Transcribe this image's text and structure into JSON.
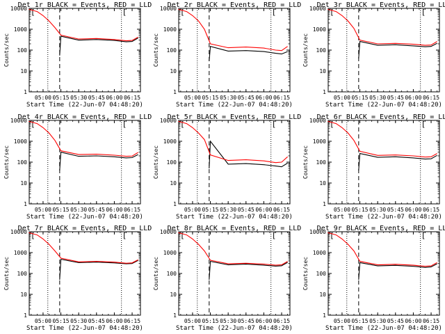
{
  "chart_data": [
    {
      "type": "line",
      "title": "Det 1r BLACK = Events, RED = LLD",
      "xlabel": "Start Time (22-Jun-07 04:48:20)",
      "ylabel": "Counts/sec",
      "x_tick_labels": [
        "05:00",
        "05:15",
        "05:30",
        "05:45",
        "06:00",
        "06:15"
      ],
      "y_tick_labels": [
        "1",
        "10",
        "100",
        "1000",
        "10000"
      ],
      "ylim": [
        1,
        10000
      ],
      "y_scale": "log",
      "x_range": [
        "04:48:20",
        "06:22:00"
      ],
      "series": [
        {
          "color": "#000000",
          "x": [
            "05:14",
            "05:15",
            "05:30",
            "05:45",
            "06:00",
            "06:10",
            "06:15",
            "06:20"
          ],
          "y": [
            55,
            460,
            300,
            320,
            290,
            250,
            260,
            380
          ]
        },
        {
          "color": "#ff0000",
          "x": [
            "04:48",
            "04:55",
            "05:00",
            "05:05",
            "05:10",
            "05:15",
            "05:30",
            "05:45",
            "06:00",
            "06:10",
            "06:15",
            "06:20"
          ],
          "y": [
            9000,
            7000,
            4500,
            2500,
            1200,
            520,
            340,
            360,
            320,
            280,
            290,
            420
          ]
        }
      ]
    },
    {
      "type": "line",
      "title": "Det 2r BLACK = Events, RED = LLD",
      "xlabel": "Start Time (22-Jun-07 04:48:20)",
      "ylabel": "Counts/sec",
      "x_tick_labels": [
        "05:00",
        "05:15",
        "05:30",
        "05:45",
        "06:00",
        "06:15"
      ],
      "y_tick_labels": [
        "1",
        "10",
        "100",
        "1000",
        "10000"
      ],
      "ylim": [
        1,
        10000
      ],
      "y_scale": "log",
      "x_range": [
        "04:48:20",
        "06:22:00"
      ],
      "series": [
        {
          "color": "#000000",
          "x": [
            "05:14",
            "05:15",
            "05:30",
            "05:45",
            "06:00",
            "06:10",
            "06:15",
            "06:20"
          ],
          "y": [
            30,
            150,
            90,
            95,
            85,
            70,
            65,
            85
          ]
        },
        {
          "color": "#ff0000",
          "x": [
            "04:48",
            "04:55",
            "05:00",
            "05:05",
            "05:10",
            "05:15",
            "05:30",
            "05:45",
            "06:00",
            "06:10",
            "06:15",
            "06:20"
          ],
          "y": [
            9000,
            7000,
            4500,
            2500,
            1000,
            200,
            130,
            140,
            125,
            100,
            95,
            150
          ]
        }
      ]
    },
    {
      "type": "line",
      "title": "Det 3r BLACK = Events, RED = LLD",
      "xlabel": "Start Time (22-Jun-07 04:48:20)",
      "ylabel": "Counts/sec",
      "x_tick_labels": [
        "05:00",
        "05:15",
        "05:30",
        "05:45",
        "06:00",
        "06:15"
      ],
      "y_tick_labels": [
        "1",
        "10",
        "100",
        "1000",
        "10000"
      ],
      "ylim": [
        1,
        10000
      ],
      "y_scale": "log",
      "x_range": [
        "04:48:20",
        "06:22:00"
      ],
      "series": [
        {
          "color": "#000000",
          "x": [
            "05:14",
            "05:15",
            "05:30",
            "05:45",
            "06:00",
            "06:10",
            "06:15",
            "06:20"
          ],
          "y": [
            40,
            260,
            170,
            180,
            160,
            145,
            150,
            210
          ]
        },
        {
          "color": "#ff0000",
          "x": [
            "04:48",
            "04:55",
            "05:00",
            "05:05",
            "05:10",
            "05:15",
            "05:30",
            "05:45",
            "06:00",
            "06:10",
            "06:15",
            "06:20"
          ],
          "y": [
            9000,
            7000,
            4500,
            2500,
            1100,
            300,
            200,
            210,
            190,
            170,
            175,
            260
          ]
        }
      ]
    },
    {
      "type": "line",
      "title": "Det 4r BLACK = Events, RED = LLD",
      "xlabel": "Start Time (22-Jun-07 04:48:20)",
      "ylabel": "Counts/sec",
      "x_tick_labels": [
        "05:00",
        "05:15",
        "05:30",
        "05:45",
        "06:00",
        "06:15"
      ],
      "y_tick_labels": [
        "1",
        "10",
        "100",
        "1000",
        "10000"
      ],
      "ylim": [
        1,
        10000
      ],
      "y_scale": "log",
      "x_range": [
        "04:48:20",
        "06:22:00"
      ],
      "series": [
        {
          "color": "#000000",
          "x": [
            "05:14",
            "05:15",
            "05:30",
            "05:45",
            "06:00",
            "06:10",
            "06:15",
            "06:20"
          ],
          "y": [
            40,
            300,
            190,
            200,
            180,
            160,
            165,
            230
          ]
        },
        {
          "color": "#ff0000",
          "x": [
            "04:48",
            "04:55",
            "05:00",
            "05:05",
            "05:10",
            "05:15",
            "05:30",
            "05:45",
            "06:00",
            "06:10",
            "06:15",
            "06:20"
          ],
          "y": [
            9000,
            7000,
            4500,
            2500,
            1100,
            350,
            230,
            240,
            215,
            190,
            195,
            290
          ]
        }
      ]
    },
    {
      "type": "line",
      "title": "Det 5r BLACK = Events, RED = LLD",
      "xlabel": "Start Time (22-Jun-07 04:48:20)",
      "ylabel": "Counts/sec",
      "x_tick_labels": [
        "05:00",
        "05:15",
        "05:30",
        "05:45",
        "06:00",
        "06:15"
      ],
      "y_tick_labels": [
        "1",
        "10",
        "100",
        "1000",
        "10000"
      ],
      "ylim": [
        1,
        10000
      ],
      "y_scale": "log",
      "x_range": [
        "04:48:20",
        "06:22:00"
      ],
      "series": [
        {
          "color": "#000000",
          "x": [
            "05:14",
            "05:15",
            "05:30",
            "05:45",
            "06:00",
            "06:10",
            "06:15",
            "06:20"
          ],
          "y": [
            50,
            1000,
            80,
            85,
            75,
            65,
            60,
            90
          ]
        },
        {
          "color": "#ff0000",
          "x": [
            "04:48",
            "04:55",
            "05:00",
            "05:05",
            "05:10",
            "05:15",
            "05:30",
            "05:45",
            "06:00",
            "06:10",
            "06:15",
            "06:20"
          ],
          "y": [
            9000,
            7000,
            4500,
            2500,
            1200,
            220,
            120,
            130,
            115,
            95,
            100,
            180
          ]
        }
      ]
    },
    {
      "type": "line",
      "title": "Det 6r BLACK = Events, RED = LLD",
      "xlabel": "Start Time (22-Jun-07 04:48:20)",
      "ylabel": "Counts/sec",
      "x_tick_labels": [
        "05:00",
        "05:15",
        "05:30",
        "05:45",
        "06:00",
        "06:15"
      ],
      "y_tick_labels": [
        "1",
        "10",
        "100",
        "1000",
        "10000"
      ],
      "ylim": [
        1,
        10000
      ],
      "y_scale": "log",
      "x_range": [
        "04:48:20",
        "06:22:00"
      ],
      "series": [
        {
          "color": "#000000",
          "x": [
            "05:14",
            "05:15",
            "05:30",
            "05:45",
            "06:00",
            "06:10",
            "06:15",
            "06:20"
          ],
          "y": [
            40,
            260,
            170,
            180,
            160,
            140,
            145,
            210
          ]
        },
        {
          "color": "#ff0000",
          "x": [
            "04:48",
            "04:55",
            "05:00",
            "05:05",
            "05:10",
            "05:15",
            "05:30",
            "05:45",
            "06:00",
            "06:10",
            "06:15",
            "06:20"
          ],
          "y": [
            9000,
            7000,
            4500,
            2500,
            1100,
            330,
            210,
            220,
            200,
            175,
            180,
            260
          ]
        }
      ]
    },
    {
      "type": "line",
      "title": "Det 7r BLACK = Events, RED = LLD",
      "xlabel": "Start Time (22-Jun-07 04:48:20)",
      "ylabel": "Counts/sec",
      "x_tick_labels": [
        "05:00",
        "05:15",
        "05:30",
        "05:45",
        "06:00",
        "06:15"
      ],
      "y_tick_labels": [
        "1",
        "10",
        "100",
        "1000",
        "10000"
      ],
      "ylim": [
        1,
        10000
      ],
      "y_scale": "log",
      "x_range": [
        "04:48:20",
        "06:22:00"
      ],
      "series": [
        {
          "color": "#000000",
          "x": [
            "05:14",
            "05:15",
            "05:30",
            "05:45",
            "06:00",
            "06:10",
            "06:15",
            "06:20"
          ],
          "y": [
            50,
            480,
            330,
            350,
            320,
            290,
            300,
            420
          ]
        },
        {
          "color": "#ff0000",
          "x": [
            "04:48",
            "04:55",
            "05:00",
            "05:05",
            "05:10",
            "05:15",
            "05:30",
            "05:45",
            "06:00",
            "06:10",
            "06:15",
            "06:20"
          ],
          "y": [
            9000,
            7000,
            4500,
            2500,
            1200,
            540,
            360,
            380,
            350,
            310,
            320,
            450
          ]
        }
      ]
    },
    {
      "type": "line",
      "title": "Det 8r BLACK = Events, RED = LLD",
      "xlabel": "Start Time (22-Jun-07 04:48:20)",
      "ylabel": "Counts/sec",
      "x_tick_labels": [
        "05:00",
        "05:15",
        "05:30",
        "05:45",
        "06:00",
        "06:15"
      ],
      "y_tick_labels": [
        "1",
        "10",
        "100",
        "1000",
        "10000"
      ],
      "ylim": [
        1,
        10000
      ],
      "y_scale": "log",
      "x_range": [
        "04:48:20",
        "06:22:00"
      ],
      "series": [
        {
          "color": "#000000",
          "x": [
            "05:14",
            "05:15",
            "05:30",
            "05:45",
            "06:00",
            "06:10",
            "06:15",
            "06:20"
          ],
          "y": [
            50,
            380,
            260,
            280,
            250,
            225,
            235,
            340
          ]
        },
        {
          "color": "#ff0000",
          "x": [
            "04:48",
            "04:55",
            "05:00",
            "05:05",
            "05:10",
            "05:15",
            "05:30",
            "05:45",
            "06:00",
            "06:10",
            "06:15",
            "06:20"
          ],
          "y": [
            9000,
            7000,
            4500,
            2500,
            1200,
            430,
            290,
            310,
            280,
            250,
            260,
            380
          ]
        }
      ]
    },
    {
      "type": "line",
      "title": "Det 9r BLACK = Events, RED = LLD",
      "xlabel": "Start Time (22-Jun-07 04:48:20)",
      "ylabel": "Counts/sec",
      "x_tick_labels": [
        "05:00",
        "05:15",
        "05:30",
        "05:45",
        "06:00",
        "06:15"
      ],
      "y_tick_labels": [
        "1",
        "10",
        "100",
        "1000",
        "10000"
      ],
      "ylim": [
        1,
        10000
      ],
      "y_scale": "log",
      "x_range": [
        "04:48:20",
        "06:22:00"
      ],
      "series": [
        {
          "color": "#000000",
          "x": [
            "05:14",
            "05:15",
            "05:30",
            "05:45",
            "06:00",
            "06:10",
            "06:15",
            "06:20"
          ],
          "y": [
            50,
            330,
            230,
            245,
            220,
            195,
            205,
            290
          ]
        },
        {
          "color": "#ff0000",
          "x": [
            "04:48",
            "04:55",
            "05:00",
            "05:05",
            "05:10",
            "05:15",
            "05:30",
            "05:45",
            "06:00",
            "06:10",
            "06:15",
            "06:20"
          ],
          "y": [
            9000,
            7000,
            4500,
            2500,
            1200,
            380,
            260,
            275,
            250,
            220,
            230,
            330
          ]
        }
      ]
    }
  ],
  "markers": {
    "dotted_times": [
      "05:04",
      "06:06"
    ],
    "dashed_time": "05:14",
    "left_bracket": "[",
    "right_bracket": "["
  }
}
